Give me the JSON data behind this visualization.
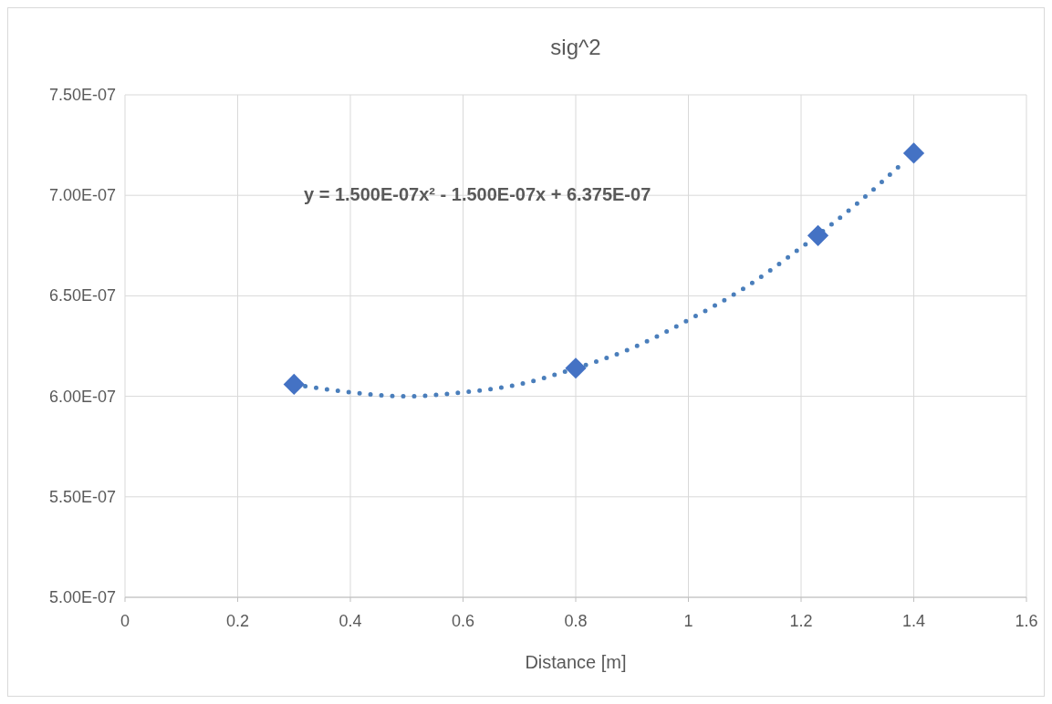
{
  "chart_data": {
    "type": "scatter",
    "title": "sig^2",
    "xlabel": "Distance [m]",
    "xlim": [
      0,
      1.6
    ],
    "xticks": [
      0,
      0.2,
      0.4,
      0.6,
      0.8,
      1,
      1.2,
      1.4,
      1.6
    ],
    "ylim": [
      5e-07,
      7.5e-07
    ],
    "yticks": [
      {
        "value": 5e-07,
        "label": "5.00E-07"
      },
      {
        "value": 5.5e-07,
        "label": "5.50E-07"
      },
      {
        "value": 6e-07,
        "label": "6.00E-07"
      },
      {
        "value": 6.5e-07,
        "label": "6.50E-07"
      },
      {
        "value": 7e-07,
        "label": "7.00E-07"
      },
      {
        "value": 7.5e-07,
        "label": "7.50E-07"
      }
    ],
    "grid": true,
    "annotations": [
      "y = 1.500E-07x² - 1.500E-07x + 6.375E-07"
    ],
    "series": [
      {
        "type": "line",
        "color": "#4a7ebb",
        "line_style": "dotted",
        "marker": "none",
        "x": [
          0.32,
          0.4,
          0.5,
          0.6,
          0.7,
          0.8,
          0.9,
          1.0,
          1.1,
          1.2,
          1.3,
          1.38
        ],
        "values": [
          6.05e-07,
          6.02e-07,
          6e-07,
          6.02e-07,
          6.06e-07,
          6.14e-07,
          6.24e-07,
          6.38e-07,
          6.54e-07,
          6.74e-07,
          6.96e-07,
          7.16e-07
        ]
      },
      {
        "color": "#4472c4",
        "marker": "diamond",
        "x": [
          0.3,
          0.8,
          1.23,
          1.4
        ],
        "values": [
          6.06e-07,
          6.14e-07,
          6.8e-07,
          7.21e-07
        ]
      }
    ]
  }
}
